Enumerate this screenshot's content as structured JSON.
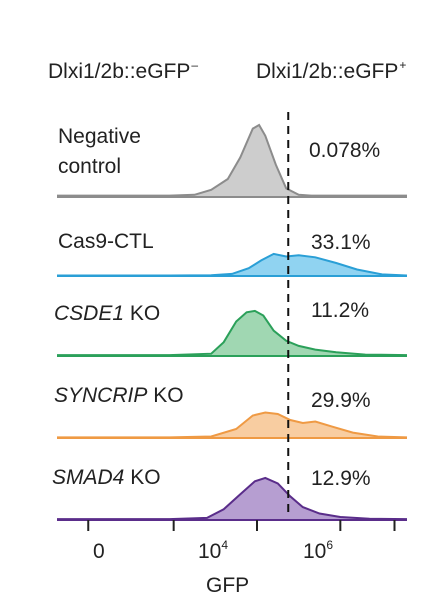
{
  "header": {
    "neg_label": "Dlxi1/2b::eGFP",
    "neg_sign": "–",
    "pos_label": "Dlxi1/2b::eGFP",
    "pos_sign": "+"
  },
  "chart_data": {
    "type": "area",
    "xlabel": "GFP",
    "x_ticks": [
      {
        "base": "0",
        "exp": ""
      },
      {
        "base": "10",
        "exp": "4"
      },
      {
        "base": "10",
        "exp": "6"
      }
    ],
    "gate_note": "dashed vertical gate separates negative (left) and positive (right) populations",
    "series": [
      {
        "name_plain": "Negative control",
        "name_line1": "Negative",
        "name_line2": "control",
        "italic": "",
        "suffix": "",
        "percent": "0.078%",
        "color": "#8c8c8c",
        "fill": "#c4c4c4",
        "x": [
          -0.9,
          -0.5,
          0.5,
          1.8,
          2.4,
          2.8,
          3.2,
          3.5,
          3.8,
          3.95,
          4.1,
          4.35,
          4.6,
          4.9,
          5.2,
          6.0,
          7.5
        ],
        "y": [
          0.02,
          0.02,
          0.02,
          0.02,
          0.03,
          0.1,
          0.25,
          0.55,
          0.95,
          1.0,
          0.85,
          0.45,
          0.12,
          0.03,
          0.02,
          0.02,
          0.02
        ]
      },
      {
        "name_plain": "Cas9-CTL",
        "name_line1": "Cas9-CTL",
        "name_line2": "",
        "italic": "",
        "suffix": "",
        "percent": "33.1%",
        "color": "#2a9fd6",
        "fill": "#7ccbee",
        "x": [
          -0.9,
          -0.5,
          0.5,
          1.8,
          2.8,
          3.3,
          3.7,
          4.0,
          4.3,
          4.6,
          4.9,
          5.3,
          5.8,
          6.3,
          6.9,
          7.5
        ],
        "y": [
          0.02,
          0.02,
          0.02,
          0.02,
          0.03,
          0.08,
          0.3,
          0.6,
          0.85,
          0.75,
          0.8,
          0.72,
          0.5,
          0.25,
          0.06,
          0.02
        ]
      },
      {
        "name_plain": "CSDE1 KO",
        "name_line1": "",
        "name_line2": "",
        "italic": "CSDE1",
        "suffix": " KO",
        "percent": "11.2%",
        "color": "#2ba05a",
        "fill": "#8fd0a4",
        "x": [
          -0.9,
          -0.5,
          0.5,
          1.8,
          2.8,
          3.1,
          3.4,
          3.65,
          3.85,
          4.05,
          4.3,
          4.6,
          4.9,
          5.3,
          5.8,
          6.5,
          7.5
        ],
        "y": [
          0.02,
          0.02,
          0.02,
          0.02,
          0.05,
          0.3,
          0.75,
          0.95,
          0.98,
          0.88,
          0.55,
          0.33,
          0.22,
          0.14,
          0.08,
          0.03,
          0.02
        ]
      },
      {
        "name_plain": "SYNCRIP KO",
        "name_line1": "",
        "name_line2": "",
        "italic": "SYNCRIP",
        "suffix": " KO",
        "percent": "29.9%",
        "color": "#ef9a44",
        "fill": "#f7c491",
        "x": [
          -0.9,
          -0.5,
          0.5,
          1.8,
          2.8,
          3.4,
          3.8,
          4.1,
          4.4,
          4.7,
          5.0,
          5.3,
          5.7,
          6.2,
          6.8,
          7.5
        ],
        "y": [
          0.02,
          0.02,
          0.02,
          0.02,
          0.05,
          0.3,
          0.75,
          0.85,
          0.8,
          0.6,
          0.5,
          0.55,
          0.38,
          0.18,
          0.05,
          0.02
        ]
      },
      {
        "name_plain": "SMAD4 KO",
        "name_line1": "",
        "name_line2": "",
        "italic": "SMAD4",
        "suffix": " KO",
        "percent": "12.9%",
        "color": "#5a2d8a",
        "fill": "#a98dc9",
        "x": [
          -0.9,
          -0.5,
          0.5,
          1.8,
          2.7,
          3.1,
          3.5,
          3.85,
          4.1,
          4.4,
          4.7,
          5.0,
          5.4,
          5.9,
          6.6,
          7.5
        ],
        "y": [
          0.02,
          0.02,
          0.02,
          0.02,
          0.05,
          0.25,
          0.6,
          0.9,
          0.98,
          0.85,
          0.55,
          0.3,
          0.15,
          0.07,
          0.03,
          0.02
        ]
      }
    ]
  }
}
